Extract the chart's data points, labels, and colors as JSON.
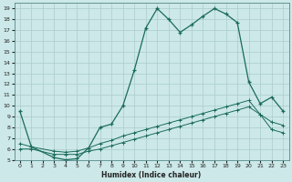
{
  "xlabel": "Humidex (Indice chaleur)",
  "bg_color": "#cce8e8",
  "grid_color": "#aacccc",
  "line_color": "#1a6b5a",
  "xlim": [
    -0.5,
    23.5
  ],
  "ylim": [
    5,
    19.5
  ],
  "xticks": [
    0,
    1,
    2,
    3,
    4,
    5,
    6,
    7,
    8,
    9,
    10,
    11,
    12,
    13,
    14,
    15,
    16,
    17,
    18,
    19,
    20,
    21,
    22,
    23
  ],
  "yticks": [
    5,
    6,
    7,
    8,
    9,
    10,
    11,
    12,
    13,
    14,
    15,
    16,
    17,
    18,
    19
  ],
  "line1_x": [
    0,
    1,
    3,
    4,
    5,
    6,
    7,
    8,
    9,
    10,
    11,
    12,
    13,
    14,
    15,
    16,
    17,
    18,
    19,
    20,
    21,
    22,
    23
  ],
  "line1_y": [
    9.5,
    6.2,
    5.2,
    5.0,
    5.1,
    6.1,
    8.0,
    8.3,
    10.0,
    13.3,
    17.2,
    19.0,
    18.0,
    16.8,
    17.5,
    18.3,
    19.0,
    18.5,
    17.7,
    12.2,
    10.2,
    10.8,
    9.5
  ],
  "line2_x": [
    0,
    1,
    3,
    4,
    5,
    6,
    7,
    8,
    9,
    10,
    11,
    12,
    13,
    14,
    15,
    16,
    17,
    18,
    19,
    20,
    21,
    22,
    23
  ],
  "line2_y": [
    6.5,
    6.2,
    5.8,
    5.7,
    5.8,
    6.1,
    6.5,
    6.8,
    7.2,
    7.5,
    7.8,
    8.1,
    8.4,
    8.7,
    9.0,
    9.3,
    9.6,
    9.9,
    10.2,
    10.5,
    9.2,
    8.5,
    8.2
  ],
  "line3_x": [
    0,
    1,
    3,
    4,
    5,
    6,
    7,
    8,
    9,
    10,
    11,
    12,
    13,
    14,
    15,
    16,
    17,
    18,
    19,
    20,
    21,
    22,
    23
  ],
  "line3_y": [
    6.0,
    6.0,
    5.5,
    5.5,
    5.5,
    5.8,
    6.0,
    6.3,
    6.6,
    6.9,
    7.2,
    7.5,
    7.8,
    8.1,
    8.4,
    8.7,
    9.0,
    9.3,
    9.6,
    9.9,
    9.2,
    7.8,
    7.5
  ]
}
